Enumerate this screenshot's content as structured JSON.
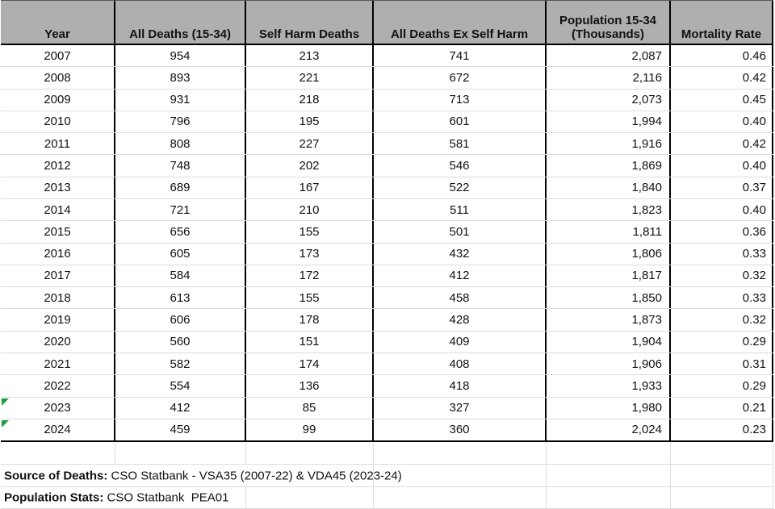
{
  "chart_data": {
    "type": "table",
    "columns": [
      "Year",
      "All Deaths (15-34)",
      "Self Harm Deaths",
      "All Deaths Ex Self Harm",
      "Population 15-34 (Thousands)",
      "Mortality Rate"
    ],
    "rows": [
      [
        "2007",
        "954",
        "213",
        "741",
        "2,087",
        "0.46"
      ],
      [
        "2008",
        "893",
        "221",
        "672",
        "2,116",
        "0.42"
      ],
      [
        "2009",
        "931",
        "218",
        "713",
        "2,073",
        "0.45"
      ],
      [
        "2010",
        "796",
        "195",
        "601",
        "1,994",
        "0.40"
      ],
      [
        "2011",
        "808",
        "227",
        "581",
        "1,916",
        "0.42"
      ],
      [
        "2012",
        "748",
        "202",
        "546",
        "1,869",
        "0.40"
      ],
      [
        "2013",
        "689",
        "167",
        "522",
        "1,840",
        "0.37"
      ],
      [
        "2014",
        "721",
        "210",
        "511",
        "1,823",
        "0.40"
      ],
      [
        "2015",
        "656",
        "155",
        "501",
        "1,811",
        "0.36"
      ],
      [
        "2016",
        "605",
        "173",
        "432",
        "1,806",
        "0.33"
      ],
      [
        "2017",
        "584",
        "172",
        "412",
        "1,817",
        "0.32"
      ],
      [
        "2018",
        "613",
        "155",
        "458",
        "1,850",
        "0.33"
      ],
      [
        "2019",
        "606",
        "178",
        "428",
        "1,873",
        "0.32"
      ],
      [
        "2020",
        "560",
        "151",
        "409",
        "1,904",
        "0.29"
      ],
      [
        "2021",
        "582",
        "174",
        "408",
        "1,906",
        "0.31"
      ],
      [
        "2022",
        "554",
        "136",
        "418",
        "1,933",
        "0.29"
      ],
      [
        "2023",
        "412",
        "85",
        "327",
        "1,980",
        "0.21"
      ],
      [
        "2024",
        "459",
        "99",
        "360",
        "2,024",
        "0.23"
      ]
    ],
    "flagged_years": [
      "2023",
      "2024"
    ],
    "notes": [
      {
        "label": "Source of Deaths:",
        "text": " CSO Statbank - VSA35 (2007-22) & VDA45 (2023-24)"
      },
      {
        "label": "Population Stats:",
        "text": " CSO Statbank  PEA01"
      }
    ]
  },
  "colors": {
    "header_bg": "#afafaf",
    "table_border": "#000000",
    "gridline": "#dcdcdc",
    "flag_green": "#1f9d40"
  }
}
